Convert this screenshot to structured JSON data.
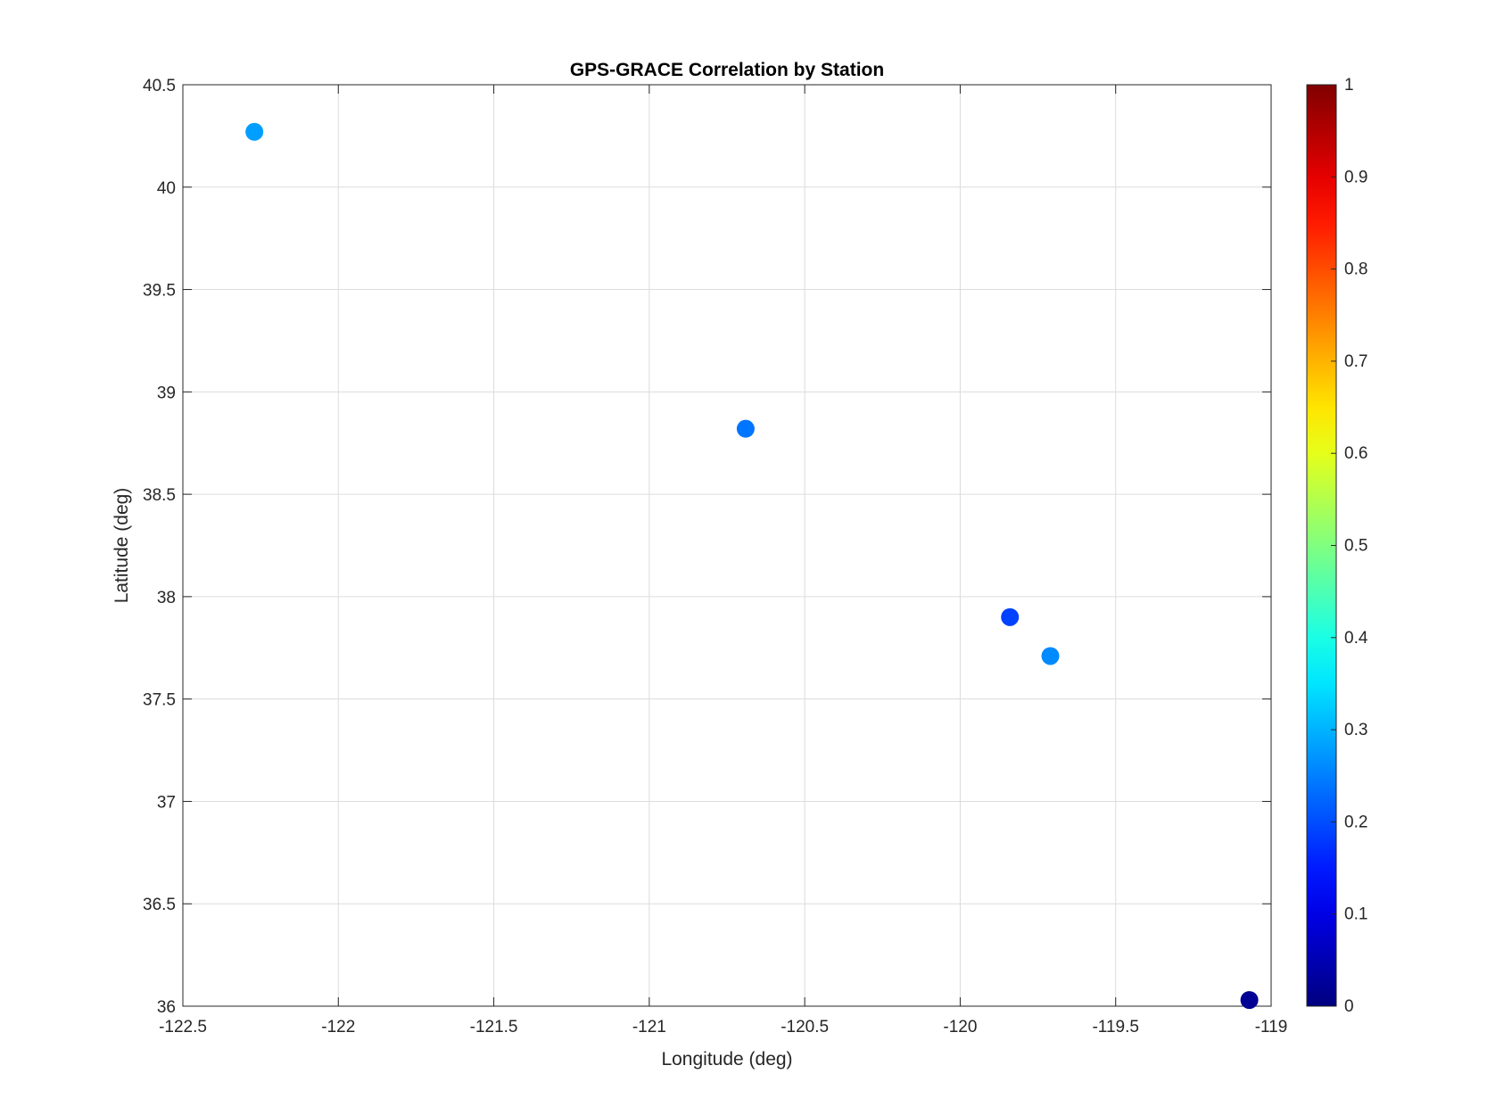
{
  "chart_data": {
    "type": "scatter",
    "title": "GPS-GRACE Correlation by Station",
    "xlabel": "Longitude (deg)",
    "ylabel": "Latitude (deg)",
    "xlim": [
      -122.5,
      -119
    ],
    "ylim": [
      36,
      40.5
    ],
    "xticks": [
      -122.5,
      -122,
      -121.5,
      -121,
      -120.5,
      -120,
      -119.5,
      -119
    ],
    "xtick_labels": [
      "-122.5",
      "-122",
      "-121.5",
      "-121",
      "-120.5",
      "-120",
      "-119.5",
      "-119"
    ],
    "yticks": [
      36,
      36.5,
      37,
      37.5,
      38,
      38.5,
      39,
      39.5,
      40,
      40.5
    ],
    "ytick_labels": [
      "36",
      "36.5",
      "37",
      "37.5",
      "38",
      "38.5",
      "39",
      "39.5",
      "40",
      "40.5"
    ],
    "grid": true,
    "colormap": "jet",
    "colorbar": {
      "range": [
        0,
        1
      ],
      "ticks": [
        0,
        0.1,
        0.2,
        0.3,
        0.4,
        0.5,
        0.6,
        0.7,
        0.8,
        0.9,
        1
      ],
      "tick_labels": [
        "0",
        "0.1",
        "0.2",
        "0.3",
        "0.4",
        "0.5",
        "0.6",
        "0.7",
        "0.8",
        "0.9",
        "1"
      ]
    },
    "points": [
      {
        "x": -122.27,
        "y": 40.27,
        "c": 0.28
      },
      {
        "x": -120.69,
        "y": 38.82,
        "c": 0.24
      },
      {
        "x": -119.84,
        "y": 37.9,
        "c": 0.19
      },
      {
        "x": -119.71,
        "y": 37.71,
        "c": 0.26
      },
      {
        "x": -119.07,
        "y": 36.03,
        "c": 0.02
      }
    ]
  }
}
